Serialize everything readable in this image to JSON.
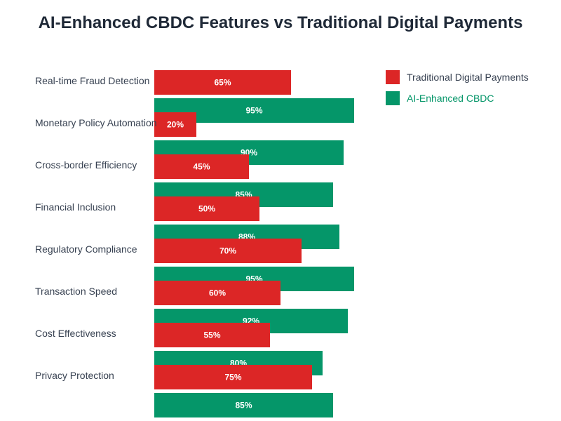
{
  "chart_data": {
    "type": "bar",
    "orientation": "horizontal",
    "title": "AI-Enhanced CBDC Features vs Traditional Digital Payments",
    "xlabel": "",
    "ylabel": "",
    "xlim": [
      0,
      100
    ],
    "grid": false,
    "legend_position": "top-right",
    "value_suffix": "%",
    "categories": [
      "Real-time Fraud Detection",
      "Monetary Policy Automation",
      "Cross-border Efficiency",
      "Financial Inclusion",
      "Regulatory Compliance",
      "Transaction Speed",
      "Cost Effectiveness",
      "Privacy Protection"
    ],
    "series": [
      {
        "name": "Traditional Digital Payments",
        "color": "#dc2626",
        "text_color": "#374151",
        "values": [
          65,
          20,
          45,
          50,
          70,
          60,
          55,
          75
        ]
      },
      {
        "name": "AI-Enhanced CBDC",
        "color": "#059669",
        "text_color": "#059669",
        "values": [
          95,
          90,
          85,
          88,
          95,
          92,
          80,
          85
        ]
      }
    ]
  }
}
